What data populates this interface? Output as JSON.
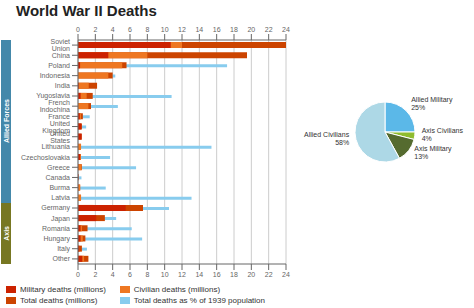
{
  "chart_data": [
    {
      "type": "bar",
      "title": "World War II Deaths",
      "orientation": "horizontal",
      "stacked": false,
      "categories": [
        "Soviet Union",
        "China",
        "Poland",
        "Indonesia",
        "India",
        "Yugoslavia",
        "French Indochina",
        "France",
        "United Kingdom",
        "United States",
        "Lithuania",
        "Czechoslovakia",
        "Greece",
        "Canada",
        "Burma",
        "Latvia",
        "Germany",
        "Japan",
        "Romania",
        "Hungary",
        "Italy",
        "Other"
      ],
      "series": [
        {
          "name": "Military deaths (millions)",
          "color": "#cc2200",
          "values": [
            10.7,
            3.5,
            0.24,
            0.0,
            0.087,
            0.3,
            0.0,
            0.21,
            0.38,
            0.42,
            0.0,
            0.25,
            0.02,
            0.045,
            0.022,
            0.0,
            5.5,
            2.1,
            0.3,
            0.3,
            0.15,
            0.5
          ]
        },
        {
          "name": "Civilian deaths (millions)",
          "color": "#ee7722",
          "values": [
            12.0,
            8.0,
            5.1,
            3.5,
            1.24,
            1.0,
            1.2,
            0.35,
            0.1,
            0.02,
            0.35,
            0.34,
            0.4,
            0.0,
            0.25,
            0.35,
            1.8,
            0.55,
            0.46,
            0.55,
            0.15,
            0.7
          ]
        },
        {
          "name": "Total deaths (millions)",
          "color": "#cc4400",
          "values": [
            24.0,
            19.5,
            5.6,
            4.0,
            2.2,
            1.7,
            1.5,
            0.56,
            0.45,
            0.42,
            0.35,
            0.34,
            0.44,
            0.045,
            0.25,
            0.35,
            7.5,
            3.1,
            1.1,
            0.85,
            0.45,
            1.2
          ]
        },
        {
          "name": "Total deaths as % of 1939 population",
          "color": "#88ccee",
          "values": [
            13.7,
            3.86,
            17.2,
            4.3,
            0.63,
            10.8,
            4.6,
            1.35,
            0.94,
            0.32,
            15.4,
            3.7,
            6.7,
            0.4,
            3.2,
            13.1,
            10.5,
            4.4,
            6.2,
            7.4,
            1.03,
            0.5
          ]
        }
      ],
      "xlim": [
        0,
        24
      ],
      "xticks": [
        0,
        2,
        4,
        6,
        8,
        10,
        12,
        14,
        16,
        18,
        20,
        22,
        24
      ],
      "grid": true,
      "legend": "bottom",
      "annotations": [
        {
          "text": "Allied Forces",
          "color": "#4488aa",
          "count": 16
        },
        {
          "text": "Axis",
          "color": "#777722",
          "count": 6
        }
      ]
    },
    {
      "type": "pie",
      "categories": [
        "Allied Military",
        "Axis Civilians",
        "Axis Military",
        "Allied Civilians"
      ],
      "values": [
        25,
        4,
        13,
        58
      ],
      "value_labels": [
        "25%",
        "4%",
        "13%",
        "58%"
      ],
      "colors": [
        "#5bb8e8",
        "#8fbc2f",
        "#556b2f",
        "#add8e6"
      ],
      "data_labels": true
    }
  ]
}
